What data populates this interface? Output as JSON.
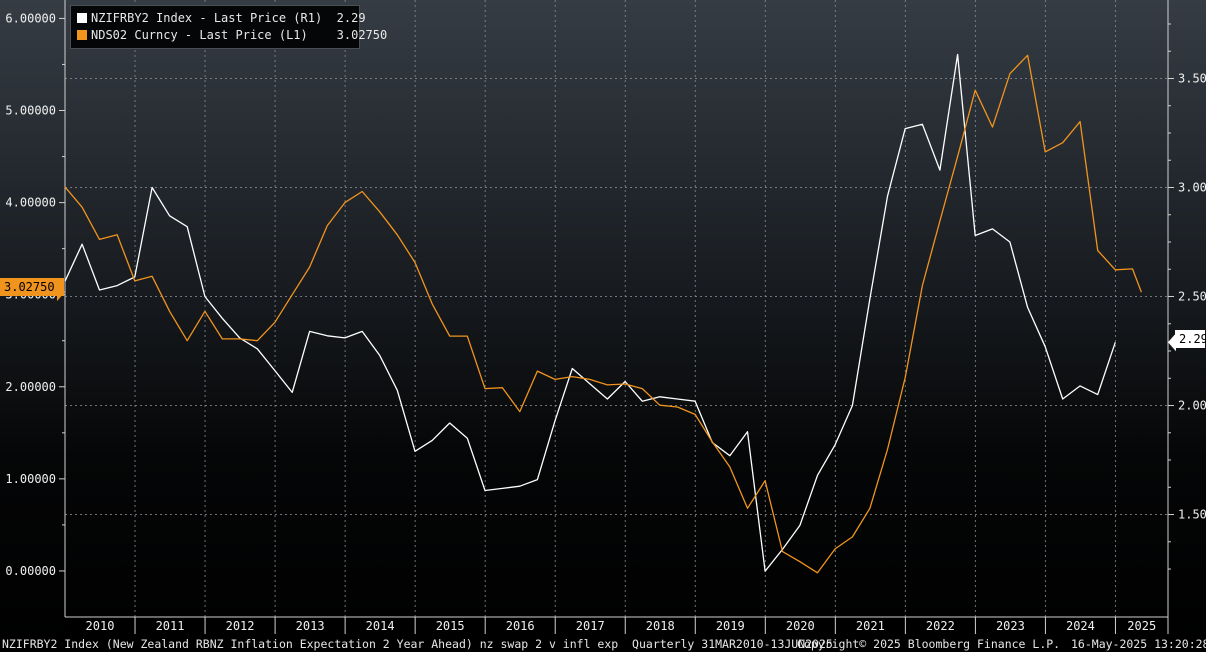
{
  "legend": {
    "s1_label": "NZIFRBY2 Index - Last Price (R1)",
    "s1_value": "2.29",
    "s2_label": "NDS02 Curncy - Last Price (L1)",
    "s2_value": "3.02750"
  },
  "footer": {
    "description": "NZIFRBY2 Index (New Zealand RBNZ Inflation Expectation 2 Year Ahead) nz swap 2 v infl exp  Quarterly 31MAR2010-13JUN2025",
    "copyright": "Copyright© 2025 Bloomberg Finance L.P.",
    "timestamp": "16-May-2025 13:20:28"
  },
  "last_value_tags": {
    "left": "3.02750",
    "right": "2.29"
  },
  "colors": {
    "white_series": "#ffffff",
    "orange_series": "#f0941e",
    "grid": "#8a8f95",
    "axis_text": "#f0f0f0"
  },
  "chart_data": {
    "type": "line",
    "title": "",
    "x_axis": {
      "range": [
        "2010-01-01",
        "2025-06-30"
      ],
      "ticks": [
        "2010",
        "2011",
        "2012",
        "2013",
        "2014",
        "2015",
        "2016",
        "2017",
        "2018",
        "2019",
        "2020",
        "2021",
        "2022",
        "2023",
        "2024",
        "2025"
      ]
    },
    "left_axis": {
      "ylim": [
        -0.5,
        6.2
      ],
      "ticks": [
        "0.00000",
        "1.00000",
        "2.00000",
        "3.00000",
        "4.00000",
        "5.00000",
        "6.00000"
      ]
    },
    "right_axis": {
      "ylim": [
        1.03,
        3.86
      ],
      "ticks": [
        "1.50",
        "2.00",
        "2.50",
        "3.00",
        "3.50"
      ]
    },
    "grid": true,
    "legend_position": "top-left",
    "series": [
      {
        "name": "NZIFRBY2 Index - Last Price (R1)",
        "axis": "right",
        "color": "#ffffff",
        "points": [
          [
            "2010-01-01",
            2.57
          ],
          [
            "2010-03-31",
            2.74
          ],
          [
            "2010-06-30",
            2.53
          ],
          [
            "2010-09-30",
            2.55
          ],
          [
            "2010-12-31",
            2.59
          ],
          [
            "2011-03-31",
            3.0
          ],
          [
            "2011-06-30",
            2.87
          ],
          [
            "2011-09-30",
            2.82
          ],
          [
            "2011-12-31",
            2.5
          ],
          [
            "2012-03-31",
            2.4
          ],
          [
            "2012-06-30",
            2.31
          ],
          [
            "2012-09-30",
            2.26
          ],
          [
            "2012-12-31",
            2.16
          ],
          [
            "2013-03-31",
            2.06
          ],
          [
            "2013-06-30",
            2.34
          ],
          [
            "2013-09-30",
            2.32
          ],
          [
            "2013-12-31",
            2.31
          ],
          [
            "2014-03-31",
            2.34
          ],
          [
            "2014-06-30",
            2.23
          ],
          [
            "2014-09-30",
            2.07
          ],
          [
            "2014-12-31",
            1.79
          ],
          [
            "2015-03-31",
            1.84
          ],
          [
            "2015-06-30",
            1.92
          ],
          [
            "2015-09-30",
            1.85
          ],
          [
            "2015-12-31",
            1.61
          ],
          [
            "2016-03-31",
            1.62
          ],
          [
            "2016-06-30",
            1.63
          ],
          [
            "2016-09-30",
            1.66
          ],
          [
            "2016-12-31",
            1.93
          ],
          [
            "2017-03-31",
            2.17
          ],
          [
            "2017-06-30",
            2.1
          ],
          [
            "2017-09-30",
            2.03
          ],
          [
            "2017-12-31",
            2.11
          ],
          [
            "2018-03-31",
            2.02
          ],
          [
            "2018-06-30",
            2.04
          ],
          [
            "2018-09-30",
            2.03
          ],
          [
            "2018-12-31",
            2.02
          ],
          [
            "2019-03-31",
            1.83
          ],
          [
            "2019-06-30",
            1.77
          ],
          [
            "2019-09-30",
            1.88
          ],
          [
            "2019-12-31",
            1.24
          ],
          [
            "2020-03-31",
            1.34
          ],
          [
            "2020-06-30",
            1.45
          ],
          [
            "2020-09-30",
            1.68
          ],
          [
            "2020-12-31",
            1.82
          ],
          [
            "2021-03-31",
            2.0
          ],
          [
            "2021-06-30",
            2.49
          ],
          [
            "2021-09-30",
            2.96
          ],
          [
            "2021-12-31",
            3.27
          ],
          [
            "2022-03-31",
            3.29
          ],
          [
            "2022-06-30",
            3.08
          ],
          [
            "2022-09-30",
            3.61
          ],
          [
            "2022-12-31",
            2.78
          ],
          [
            "2023-03-31",
            2.81
          ],
          [
            "2023-06-30",
            2.75
          ],
          [
            "2023-09-30",
            2.45
          ],
          [
            "2023-12-31",
            2.27
          ],
          [
            "2024-03-31",
            2.03
          ],
          [
            "2024-06-30",
            2.09
          ],
          [
            "2024-09-30",
            2.05
          ],
          [
            "2024-12-31",
            2.29
          ]
        ]
      },
      {
        "name": "NDS02 Curncy - Last Price (L1)",
        "axis": "left",
        "color": "#f0941e",
        "points": [
          [
            "2010-01-01",
            4.17
          ],
          [
            "2010-03-31",
            3.95
          ],
          [
            "2010-06-30",
            3.6
          ],
          [
            "2010-09-30",
            3.65
          ],
          [
            "2010-12-31",
            3.15
          ],
          [
            "2011-03-31",
            3.2
          ],
          [
            "2011-06-30",
            2.82
          ],
          [
            "2011-09-30",
            2.5
          ],
          [
            "2011-12-31",
            2.82
          ],
          [
            "2012-03-31",
            2.52
          ],
          [
            "2012-06-30",
            2.52
          ],
          [
            "2012-09-30",
            2.5
          ],
          [
            "2012-12-31",
            2.7
          ],
          [
            "2013-03-31",
            3.0
          ],
          [
            "2013-06-30",
            3.3
          ],
          [
            "2013-09-30",
            3.75
          ],
          [
            "2013-12-31",
            4.0
          ],
          [
            "2014-03-31",
            4.12
          ],
          [
            "2014-06-30",
            3.9
          ],
          [
            "2014-09-30",
            3.65
          ],
          [
            "2014-12-31",
            3.35
          ],
          [
            "2015-03-31",
            2.9
          ],
          [
            "2015-06-30",
            2.55
          ],
          [
            "2015-09-30",
            2.55
          ],
          [
            "2015-12-31",
            1.98
          ],
          [
            "2016-03-31",
            1.99
          ],
          [
            "2016-06-30",
            1.73
          ],
          [
            "2016-09-30",
            2.17
          ],
          [
            "2016-12-31",
            2.08
          ],
          [
            "2017-03-31",
            2.11
          ],
          [
            "2017-06-30",
            2.08
          ],
          [
            "2017-09-30",
            2.02
          ],
          [
            "2017-12-31",
            2.03
          ],
          [
            "2018-03-31",
            1.98
          ],
          [
            "2018-06-30",
            1.8
          ],
          [
            "2018-09-30",
            1.78
          ],
          [
            "2018-12-31",
            1.7
          ],
          [
            "2019-03-31",
            1.4
          ],
          [
            "2019-06-30",
            1.13
          ],
          [
            "2019-09-30",
            0.68
          ],
          [
            "2019-12-31",
            0.98
          ],
          [
            "2020-03-31",
            0.21
          ],
          [
            "2020-06-30",
            0.1
          ],
          [
            "2020-09-30",
            -0.02
          ],
          [
            "2020-12-31",
            0.24
          ],
          [
            "2021-03-31",
            0.37
          ],
          [
            "2021-06-30",
            0.68
          ],
          [
            "2021-09-30",
            1.32
          ],
          [
            "2021-12-31",
            2.1
          ],
          [
            "2022-03-31",
            3.1
          ],
          [
            "2022-06-30",
            3.8
          ],
          [
            "2022-09-30",
            4.5
          ],
          [
            "2022-12-31",
            5.22
          ],
          [
            "2023-03-31",
            4.82
          ],
          [
            "2023-06-30",
            5.4
          ],
          [
            "2023-09-30",
            5.6
          ],
          [
            "2023-12-31",
            4.55
          ],
          [
            "2024-03-31",
            4.65
          ],
          [
            "2024-06-30",
            4.88
          ],
          [
            "2024-09-30",
            3.48
          ],
          [
            "2024-12-31",
            3.27
          ],
          [
            "2025-03-31",
            3.28
          ],
          [
            "2025-05-16",
            3.0275
          ]
        ]
      }
    ]
  }
}
